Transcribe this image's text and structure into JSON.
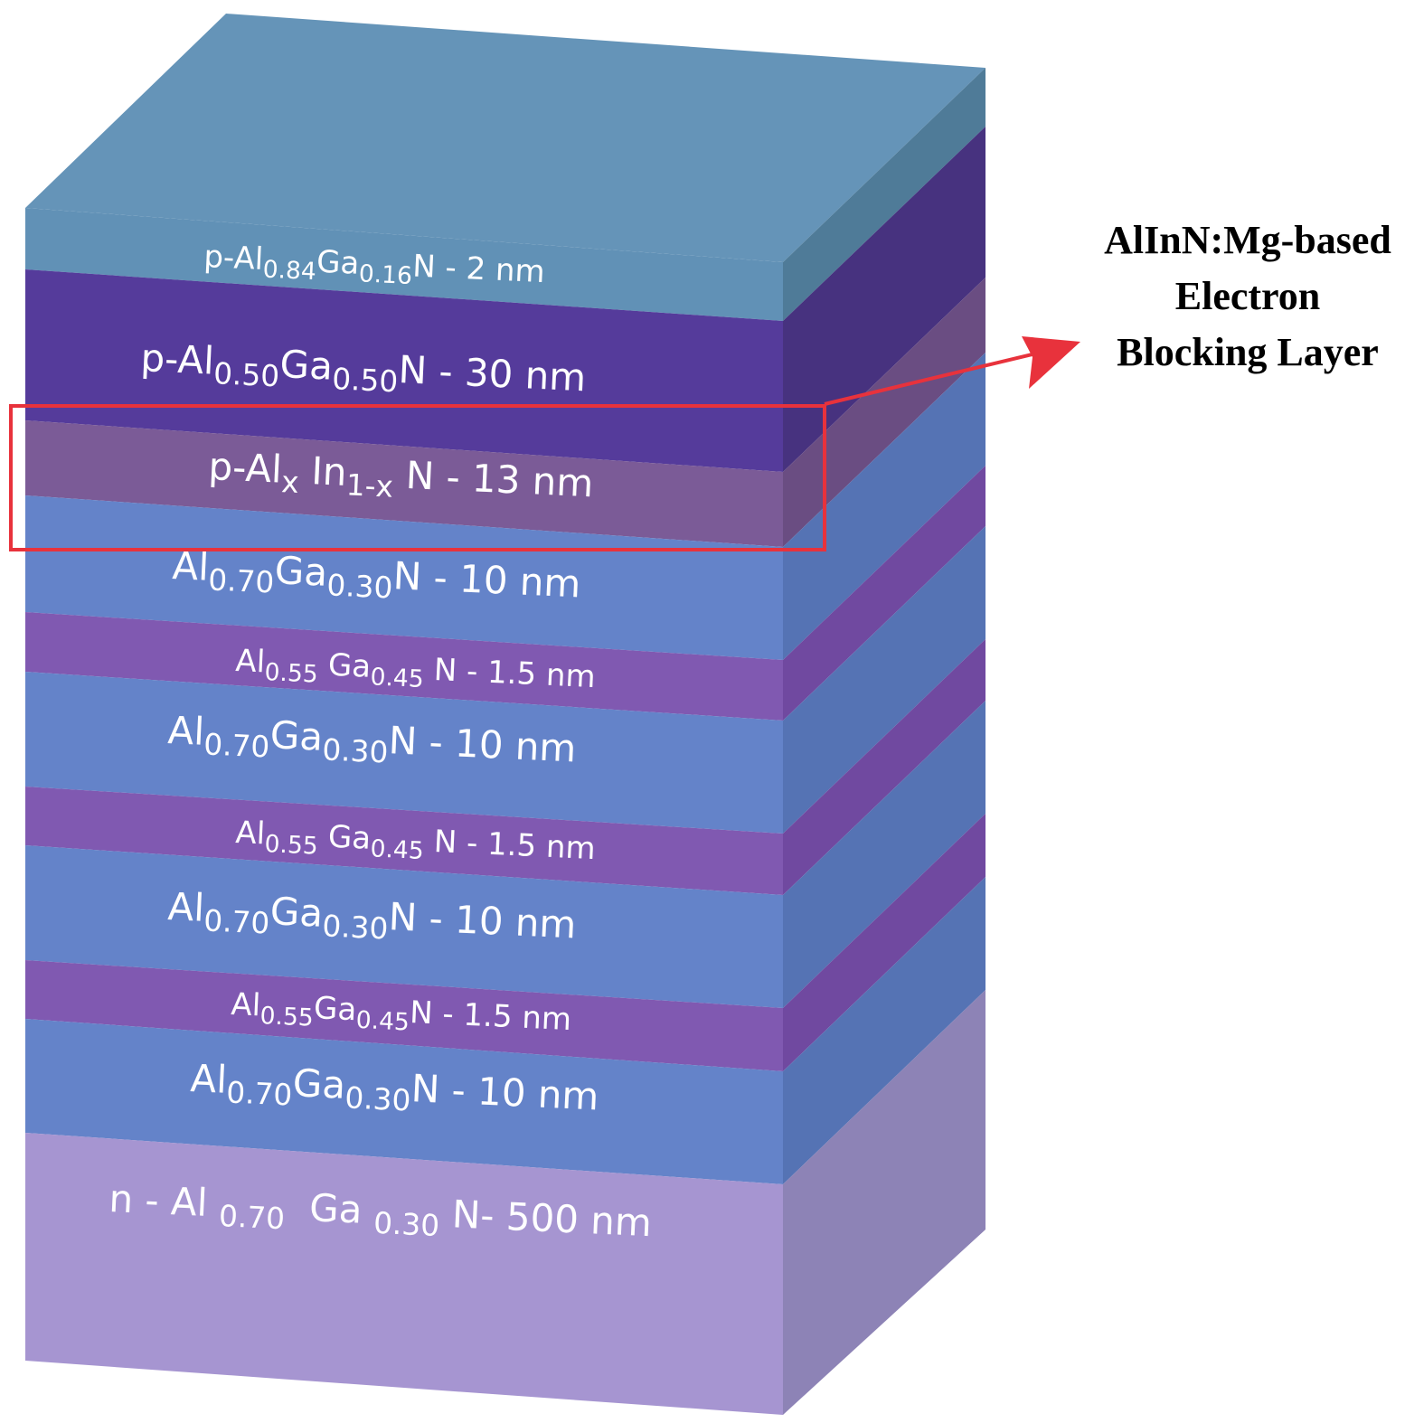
{
  "layers": [
    {
      "label": [
        "p-Al",
        "0.84",
        "Ga",
        "0.16",
        "N - 2 nm"
      ]
    },
    {
      "label": [
        "p-Al",
        "0.50",
        "Ga",
        "0.50",
        "N - 30 nm"
      ]
    },
    {
      "label": [
        "p-Al",
        "x",
        " In",
        "1-x",
        " N - 13 nm"
      ]
    },
    {
      "label": [
        "Al",
        "0.70",
        "Ga",
        "0.30",
        "N - 10 nm"
      ]
    },
    {
      "label": [
        "Al",
        "0.55",
        " Ga",
        "0.45",
        " N - 1.5 nm"
      ]
    },
    {
      "label": [
        "Al",
        "0.70",
        "Ga",
        "0.30",
        "N - 10 nm"
      ]
    },
    {
      "label": [
        "Al",
        "0.55",
        " Ga",
        "0.45",
        " N - 1.5 nm"
      ]
    },
    {
      "label": [
        "Al",
        "0.70",
        "Ga",
        "0.30",
        "N - 10 nm"
      ]
    },
    {
      "label": [
        "Al",
        "0.55",
        "Ga",
        "0.45",
        "N - 1.5 nm"
      ]
    },
    {
      "label": [
        "Al",
        "0.70",
        "Ga",
        "0.30",
        "N - 10 nm"
      ]
    },
    {
      "label": [
        "n - Al ",
        "0.70",
        "  Ga ",
        "0.30",
        " N- 500 nm"
      ]
    }
  ],
  "annotation": {
    "lines": [
      "AlInN:Mg-based",
      "Electron",
      "Blocking Layer"
    ]
  }
}
